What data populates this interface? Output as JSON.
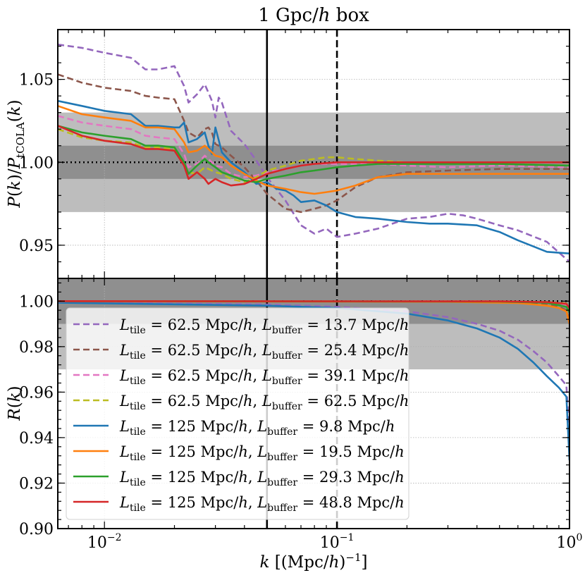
{
  "chart_data": [
    {
      "type": "line",
      "panel": "top",
      "title": "1 Gpc/h box",
      "ylabel": "P(k)/P_tCOLA(k)",
      "xlabel": "",
      "xscale": "log",
      "xlim": [
        0.0063,
        1.0
      ],
      "ylim": [
        0.93,
        1.08
      ],
      "yticks": [
        0.95,
        1.0,
        1.05
      ],
      "ytick_labels": [
        "0.95",
        "1.00",
        "1.05"
      ],
      "grid": true,
      "bands": [
        {
          "y0": 0.97,
          "y1": 1.03,
          "color": "#bdbdbd"
        },
        {
          "y0": 0.99,
          "y1": 1.01,
          "color": "#8f8f8f"
        }
      ],
      "hlines": [
        {
          "y": 1.0,
          "style": "dotted",
          "color": "#000000"
        }
      ],
      "vlines": [
        {
          "x": 0.05,
          "style": "solid",
          "color": "#000000"
        },
        {
          "x": 0.1,
          "style": "dashed",
          "color": "#000000"
        }
      ],
      "series": [
        {
          "name": "L_tile = 62.5 Mpc/h, L_buffer = 13.7 Mpc/h",
          "color": "#9467bd",
          "dash": true,
          "x": [
            0.0063,
            0.008,
            0.01,
            0.013,
            0.015,
            0.017,
            0.02,
            0.022,
            0.023,
            0.025,
            0.027,
            0.028,
            0.029,
            0.03,
            0.031,
            0.032,
            0.035,
            0.04,
            0.045,
            0.05,
            0.06,
            0.07,
            0.08,
            0.09,
            0.1,
            0.12,
            0.15,
            0.2,
            0.25,
            0.3,
            0.35,
            0.4,
            0.5,
            0.6,
            0.8,
            1.0
          ],
          "y": [
            1.071,
            1.069,
            1.066,
            1.063,
            1.056,
            1.056,
            1.058,
            1.046,
            1.036,
            1.041,
            1.047,
            1.042,
            1.037,
            1.027,
            1.039,
            1.036,
            1.019,
            1.011,
            1.001,
            0.991,
            0.977,
            0.962,
            0.957,
            0.96,
            0.955,
            0.957,
            0.96,
            0.966,
            0.967,
            0.969,
            0.968,
            0.966,
            0.962,
            0.959,
            0.952,
            0.94
          ]
        },
        {
          "name": "L_tile = 62.5 Mpc/h, L_buffer = 25.4 Mpc/h",
          "color": "#8c564b",
          "dash": true,
          "x": [
            0.0063,
            0.008,
            0.01,
            0.013,
            0.015,
            0.017,
            0.02,
            0.022,
            0.023,
            0.025,
            0.027,
            0.028,
            0.029,
            0.03,
            0.032,
            0.035,
            0.04,
            0.045,
            0.05,
            0.06,
            0.07,
            0.08,
            0.09,
            0.1,
            0.12,
            0.15,
            0.2,
            0.3,
            0.5,
            1.0
          ],
          "y": [
            1.053,
            1.048,
            1.045,
            1.043,
            1.04,
            1.039,
            1.038,
            1.025,
            1.018,
            1.015,
            1.02,
            1.021,
            1.018,
            1.011,
            1.009,
            1.004,
            0.997,
            0.989,
            0.981,
            0.972,
            0.97,
            0.972,
            0.974,
            0.977,
            0.985,
            0.991,
            0.994,
            0.995,
            0.996,
            0.996
          ]
        },
        {
          "name": "L_tile = 62.5 Mpc/h, L_buffer = 39.1 Mpc/h",
          "color": "#e377c2",
          "dash": true,
          "x": [
            0.0063,
            0.008,
            0.01,
            0.013,
            0.015,
            0.017,
            0.02,
            0.022,
            0.023,
            0.025,
            0.027,
            0.028,
            0.03,
            0.032,
            0.035,
            0.04,
            0.045,
            0.05,
            0.06,
            0.07,
            0.08,
            0.1,
            0.15,
            0.2,
            0.3,
            0.5,
            1.0
          ],
          "y": [
            1.028,
            1.024,
            1.022,
            1.02,
            1.016,
            1.015,
            1.014,
            1.005,
            0.997,
            0.999,
            1.004,
            1.002,
            0.998,
            0.997,
            0.993,
            0.991,
            0.992,
            0.994,
            0.996,
            0.998,
            0.999,
            0.999,
            0.999,
            0.998,
            0.997,
            0.998,
            0.997
          ]
        },
        {
          "name": "L_tile = 62.5 Mpc/h, L_buffer = 62.5 Mpc/h",
          "color": "#bcbd22",
          "dash": true,
          "x": [
            0.0063,
            0.008,
            0.01,
            0.013,
            0.015,
            0.017,
            0.02,
            0.022,
            0.023,
            0.025,
            0.027,
            0.028,
            0.03,
            0.032,
            0.035,
            0.04,
            0.045,
            0.05,
            0.06,
            0.07,
            0.08,
            0.09,
            0.1,
            0.12,
            0.15,
            0.2,
            0.3,
            0.5,
            1.0
          ],
          "y": [
            1.02,
            1.015,
            1.013,
            1.012,
            1.009,
            1.009,
            1.008,
            0.999,
            0.994,
            0.993,
            0.997,
            0.996,
            0.994,
            0.993,
            0.99,
            0.988,
            0.991,
            0.995,
            0.998,
            1.001,
            1.002,
            1.003,
            1.003,
            1.002,
            1.001,
            1.0,
            0.999,
            0.999,
            0.998
          ]
        },
        {
          "name": "L_tile = 125 Mpc/h, L_buffer = 9.8 Mpc/h",
          "color": "#1f77b4",
          "dash": false,
          "x": [
            0.0063,
            0.008,
            0.01,
            0.013,
            0.015,
            0.017,
            0.02,
            0.021,
            0.022,
            0.023,
            0.025,
            0.027,
            0.028,
            0.029,
            0.03,
            0.032,
            0.035,
            0.04,
            0.045,
            0.05,
            0.055,
            0.06,
            0.065,
            0.07,
            0.08,
            0.09,
            0.1,
            0.12,
            0.15,
            0.2,
            0.25,
            0.3,
            0.4,
            0.5,
            0.6,
            0.8,
            1.0
          ],
          "y": [
            1.037,
            1.034,
            1.031,
            1.029,
            1.022,
            1.022,
            1.021,
            1.021,
            1.024,
            1.012,
            1.014,
            1.018,
            1.01,
            1.005,
            1.021,
            1.006,
            1.0,
            0.994,
            0.987,
            0.988,
            0.984,
            0.983,
            0.98,
            0.976,
            0.977,
            0.974,
            0.97,
            0.967,
            0.966,
            0.964,
            0.963,
            0.963,
            0.962,
            0.958,
            0.953,
            0.946,
            0.945
          ]
        },
        {
          "name": "L_tile = 125 Mpc/h, L_buffer = 19.5 Mpc/h",
          "color": "#ff7f0e",
          "dash": false,
          "x": [
            0.0063,
            0.008,
            0.01,
            0.013,
            0.015,
            0.017,
            0.02,
            0.022,
            0.023,
            0.025,
            0.027,
            0.028,
            0.03,
            0.032,
            0.035,
            0.04,
            0.045,
            0.05,
            0.06,
            0.07,
            0.08,
            0.09,
            0.1,
            0.12,
            0.15,
            0.2,
            0.3,
            0.5,
            1.0
          ],
          "y": [
            1.034,
            1.029,
            1.027,
            1.025,
            1.021,
            1.021,
            1.02,
            1.012,
            1.006,
            1.007,
            1.01,
            1.008,
            1.004,
            1.003,
            0.998,
            0.993,
            0.989,
            0.986,
            0.984,
            0.982,
            0.981,
            0.982,
            0.983,
            0.986,
            0.991,
            0.993,
            0.993,
            0.993,
            0.993
          ]
        },
        {
          "name": "L_tile = 125 Mpc/h, L_buffer = 29.3 Mpc/h",
          "color": "#2ca02c",
          "dash": false,
          "x": [
            0.0063,
            0.008,
            0.01,
            0.013,
            0.015,
            0.017,
            0.02,
            0.022,
            0.023,
            0.025,
            0.027,
            0.028,
            0.03,
            0.032,
            0.035,
            0.04,
            0.045,
            0.05,
            0.06,
            0.07,
            0.08,
            0.1,
            0.12,
            0.15,
            0.2,
            0.3,
            0.5,
            1.0
          ],
          "y": [
            1.022,
            1.018,
            1.016,
            1.014,
            1.01,
            1.01,
            1.009,
            1.0,
            0.993,
            0.998,
            1.002,
            1.0,
            0.997,
            0.994,
            0.992,
            0.989,
            0.988,
            0.99,
            0.992,
            0.994,
            0.995,
            0.997,
            0.998,
            0.999,
            0.999,
            0.999,
            0.999,
            0.998
          ]
        },
        {
          "name": "L_tile = 125 Mpc/h, L_buffer = 48.8 Mpc/h",
          "color": "#d62728",
          "dash": false,
          "x": [
            0.0063,
            0.008,
            0.01,
            0.013,
            0.015,
            0.017,
            0.02,
            0.022,
            0.023,
            0.025,
            0.027,
            0.028,
            0.03,
            0.032,
            0.035,
            0.04,
            0.045,
            0.05,
            0.06,
            0.07,
            0.08,
            0.1,
            0.12,
            0.15,
            0.2,
            0.3,
            0.5,
            1.0
          ],
          "y": [
            1.022,
            1.016,
            1.013,
            1.011,
            1.008,
            1.008,
            1.007,
            0.998,
            0.99,
            0.994,
            0.99,
            0.987,
            0.99,
            0.988,
            0.986,
            0.987,
            0.99,
            0.993,
            0.996,
            0.998,
            0.999,
            1.0,
            1.0,
            1.0,
            1.0,
            1.0,
            1.0,
            1.0
          ]
        }
      ]
    },
    {
      "type": "line",
      "panel": "bottom",
      "ylabel": "R(k)",
      "xlabel": "k [(Mpc/h)^-1]",
      "xscale": "log",
      "xlim": [
        0.0063,
        1.0
      ],
      "ylim": [
        0.9,
        1.01
      ],
      "yticks": [
        0.9,
        0.92,
        0.94,
        0.96,
        0.98,
        1.0
      ],
      "ytick_labels": [
        "0.90",
        "0.92",
        "0.94",
        "0.96",
        "0.98",
        "1.00"
      ],
      "xtick_exponents": [
        "−2",
        "−1",
        "0"
      ],
      "grid": true,
      "legend_position": "center-left",
      "bands": [
        {
          "y0": 0.97,
          "y1": 1.01,
          "color": "#bdbdbd"
        },
        {
          "y0": 0.99,
          "y1": 1.01,
          "color": "#8f8f8f"
        }
      ],
      "hlines": [
        {
          "y": 1.0,
          "style": "dotted",
          "color": "#000000"
        }
      ],
      "vlines": [
        {
          "x": 0.05,
          "style": "solid",
          "color": "#000000"
        },
        {
          "x": 0.1,
          "style": "dashed",
          "color": "#000000"
        }
      ],
      "series": [
        {
          "name": "L_tile = 62.5 Mpc/h, L_buffer = 13.7 Mpc/h",
          "color": "#9467bd",
          "dash": true,
          "x": [
            0.0063,
            0.05,
            0.1,
            0.2,
            0.3,
            0.4,
            0.5,
            0.6,
            0.7,
            0.8,
            0.9,
            0.97,
            1.0
          ],
          "y": [
            0.9995,
            0.9985,
            0.9975,
            0.9955,
            0.993,
            0.99,
            0.987,
            0.983,
            0.978,
            0.973,
            0.967,
            0.963,
            0.94
          ]
        },
        {
          "name": "L_tile = 62.5 Mpc/h, L_buffer = 25.4 Mpc/h",
          "color": "#8c564b",
          "dash": true,
          "x": [
            0.0063,
            0.3,
            0.6,
            0.8,
            0.9,
            0.97,
            1.0
          ],
          "y": [
            1.0,
            0.9998,
            0.9993,
            0.9985,
            0.9975,
            0.996,
            0.991
          ]
        },
        {
          "name": "L_tile = 62.5 Mpc/h, L_buffer = 39.1 Mpc/h",
          "color": "#e377c2",
          "dash": true,
          "x": [
            0.0063,
            0.5,
            0.8,
            0.97,
            1.0
          ],
          "y": [
            1.0,
            0.9999,
            0.9995,
            0.998,
            0.996
          ]
        },
        {
          "name": "L_tile = 62.5 Mpc/h, L_buffer = 62.5 Mpc/h",
          "color": "#bcbd22",
          "dash": true,
          "x": [
            0.0063,
            0.5,
            0.8,
            0.97,
            1.0
          ],
          "y": [
            1.0,
            0.9999,
            0.9996,
            0.999,
            0.997
          ]
        },
        {
          "name": "L_tile = 125 Mpc/h, L_buffer = 9.8 Mpc/h",
          "color": "#1f77b4",
          "dash": false,
          "x": [
            0.0063,
            0.05,
            0.1,
            0.2,
            0.3,
            0.4,
            0.5,
            0.6,
            0.7,
            0.8,
            0.9,
            0.97,
            1.0
          ],
          "y": [
            0.9993,
            0.998,
            0.997,
            0.9945,
            0.9915,
            0.988,
            0.984,
            0.979,
            0.973,
            0.967,
            0.962,
            0.958,
            0.93
          ]
        },
        {
          "name": "L_tile = 125 Mpc/h, L_buffer = 19.5 Mpc/h",
          "color": "#ff7f0e",
          "dash": false,
          "x": [
            0.0063,
            0.3,
            0.6,
            0.8,
            0.9,
            0.97,
            1.0
          ],
          "y": [
            1.0,
            0.9997,
            0.9992,
            0.998,
            0.997,
            0.9955,
            0.99
          ]
        },
        {
          "name": "L_tile = 125 Mpc/h, L_buffer = 29.3 Mpc/h",
          "color": "#2ca02c",
          "dash": false,
          "x": [
            0.0063,
            0.5,
            0.8,
            0.97,
            1.0
          ],
          "y": [
            1.0,
            0.9998,
            0.9993,
            0.9975,
            0.995
          ]
        },
        {
          "name": "L_tile = 125 Mpc/h, L_buffer = 48.8 Mpc/h",
          "color": "#d62728",
          "dash": false,
          "x": [
            0.0063,
            0.5,
            0.8,
            0.97,
            1.0
          ],
          "y": [
            1.0,
            0.9999,
            0.9996,
            0.9988,
            0.997
          ]
        }
      ]
    }
  ],
  "legend": [
    {
      "tile": "62.5",
      "buffer": "13.7"
    },
    {
      "tile": "62.5",
      "buffer": "25.4"
    },
    {
      "tile": "62.5",
      "buffer": "39.1"
    },
    {
      "tile": "62.5",
      "buffer": "62.5"
    },
    {
      "tile": "125",
      "buffer": "9.8"
    },
    {
      "tile": "125",
      "buffer": "19.5"
    },
    {
      "tile": "125",
      "buffer": "29.3"
    },
    {
      "tile": "125",
      "buffer": "48.8"
    }
  ]
}
